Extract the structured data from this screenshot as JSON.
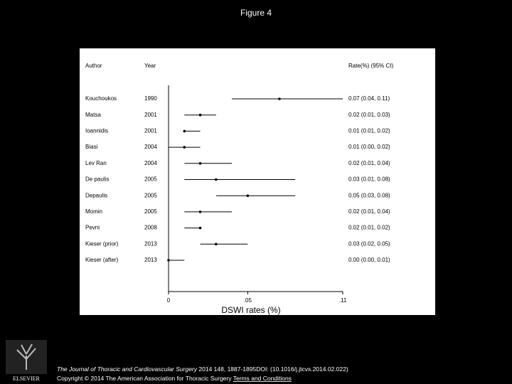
{
  "title": "Figure 4",
  "chart_data": {
    "type": "forest",
    "headers": {
      "author": "Author",
      "year": "Year",
      "rate": "Rate(%) (95% CI)"
    },
    "categories": [
      "Kouchoukos",
      "Matsa",
      "Ioannidis",
      "Biasi",
      "Lev Ran",
      "De paulis",
      "Depaulis",
      "Momin",
      "Pevni",
      "Kieser (prior)",
      "Kieser (after)"
    ],
    "years": [
      "1990",
      "2001",
      "2001",
      "2004",
      "2004",
      "2005",
      "2005",
      "2005",
      "2008",
      "2013",
      "2013"
    ],
    "values": [
      0.07,
      0.02,
      0.01,
      0.01,
      0.02,
      0.03,
      0.05,
      0.02,
      0.02,
      0.03,
      0.0
    ],
    "lower": [
      0.04,
      0.01,
      0.01,
      0.0,
      0.01,
      0.01,
      0.03,
      0.01,
      0.01,
      0.02,
      0.0
    ],
    "upper": [
      0.11,
      0.03,
      0.02,
      0.02,
      0.04,
      0.08,
      0.08,
      0.04,
      0.02,
      0.05,
      0.01
    ],
    "value_labels": [
      "0.07 (0.04, 0.11)",
      "0.02 (0.01, 0.03)",
      "0.01 (0.01, 0.02)",
      "0.01 (0.00, 0.02)",
      "0.02 (0.01, 0.04)",
      "0.03 (0.01, 0.08)",
      "0.05 (0.03, 0.08)",
      "0.02 (0.01, 0.04)",
      "0.02 (0.01, 0.02)",
      "0.03 (0.02, 0.05)",
      "0.00 (0.00, 0.01)"
    ],
    "xlabel": "DSWI rates (%)",
    "xlim": [
      0,
      0.11
    ],
    "xticks": [
      0,
      {
        "value": 0.05,
        "label": ".05"
      },
      {
        "value": 0.11,
        "label": ".11"
      }
    ],
    "color": "#000000"
  },
  "footer": {
    "journal": "The Journal of Thoracic and Cardiovascular Surgery",
    "citation": "2014 148, 1887-1895DOI: (10.1016/j.jtcvs.2014.02.022)",
    "copyright": "Copyright © 2014 The American Association for Thoracic Surgery",
    "link": "Terms and Conditions"
  },
  "logo": "ELSEVIER"
}
